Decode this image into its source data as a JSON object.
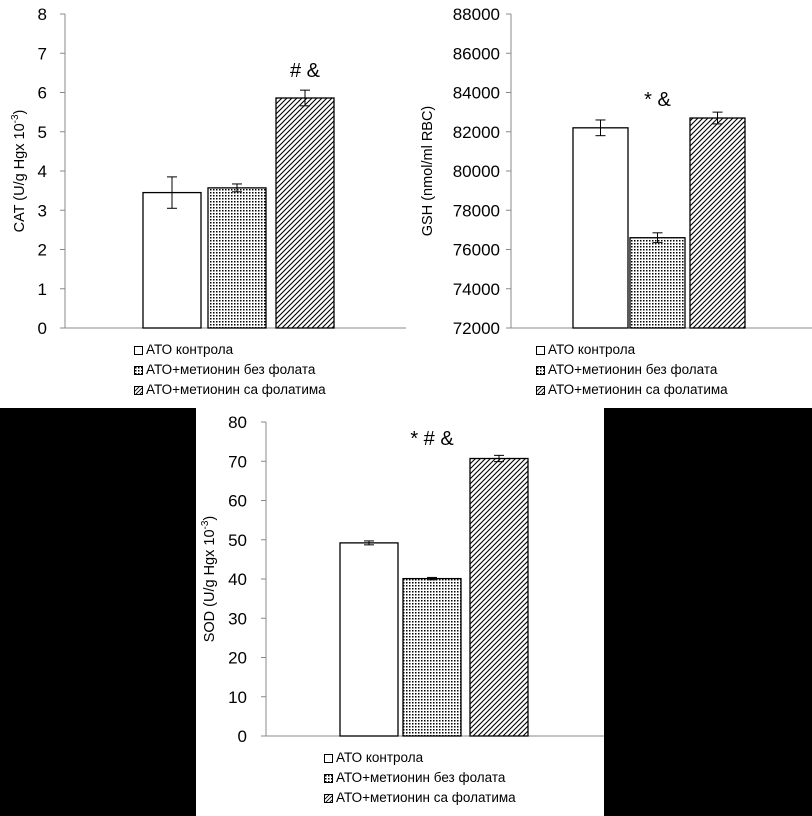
{
  "legend": {
    "items": [
      {
        "label": "АТО контрола",
        "pattern": "white"
      },
      {
        "label": "АТО+метионин без фолата",
        "pattern": "dots"
      },
      {
        "label": "АТО+метионин са фолатима",
        "pattern": "hatch"
      }
    ]
  },
  "chart_data": [
    {
      "type": "bar",
      "ylabel_main": "CAT (U/g Hgx 10",
      "ylabel_sup": "-3",
      "ylabel_end": ")",
      "ylim": [
        0,
        8
      ],
      "yticks": [
        0,
        1,
        2,
        3,
        4,
        5,
        6,
        7,
        8
      ],
      "yticklabels": [
        "0",
        "1",
        "2",
        "3",
        "4",
        "5",
        "6",
        "7",
        "8"
      ],
      "series": [
        {
          "pattern": "white",
          "value": 3.45,
          "error": 0.4
        },
        {
          "pattern": "dots",
          "value": 3.57,
          "error": 0.1
        },
        {
          "pattern": "hatch",
          "value": 5.86,
          "error": 0.2,
          "annotation": "#  &"
        }
      ]
    },
    {
      "type": "bar",
      "ylabel_main": "GSH (nmol/ml RBC)",
      "ylabel_sup": "",
      "ylabel_end": "",
      "ylim": [
        72000,
        88000
      ],
      "yticks": [
        72000,
        74000,
        76000,
        78000,
        80000,
        82000,
        84000,
        86000,
        88000
      ],
      "yticklabels": [
        "72000",
        "74000",
        "76000",
        "78000",
        "80000",
        "82000",
        "84000",
        "86000",
        "88000"
      ],
      "series": [
        {
          "pattern": "white",
          "value": 82200,
          "error": 400
        },
        {
          "pattern": "dots",
          "value": 76600,
          "error": 250,
          "annotation": "*  &"
        },
        {
          "pattern": "hatch",
          "value": 82700,
          "error": 300
        }
      ]
    },
    {
      "type": "bar",
      "ylabel_main": "SOD (U/g Hgx 10",
      "ylabel_sup": "-3",
      "ylabel_end": ")",
      "ylim": [
        0,
        80
      ],
      "yticks": [
        0,
        10,
        20,
        30,
        40,
        50,
        60,
        70,
        80
      ],
      "yticklabels": [
        "0",
        "10",
        "20",
        "30",
        "40",
        "50",
        "60",
        "70",
        "80"
      ],
      "series": [
        {
          "pattern": "white",
          "value": 49.2,
          "error": 0.5
        },
        {
          "pattern": "dots",
          "value": 40.1,
          "error": 0.3,
          "annotation": "*  # &"
        },
        {
          "pattern": "hatch",
          "value": 70.7,
          "error": 0.8
        }
      ]
    }
  ]
}
